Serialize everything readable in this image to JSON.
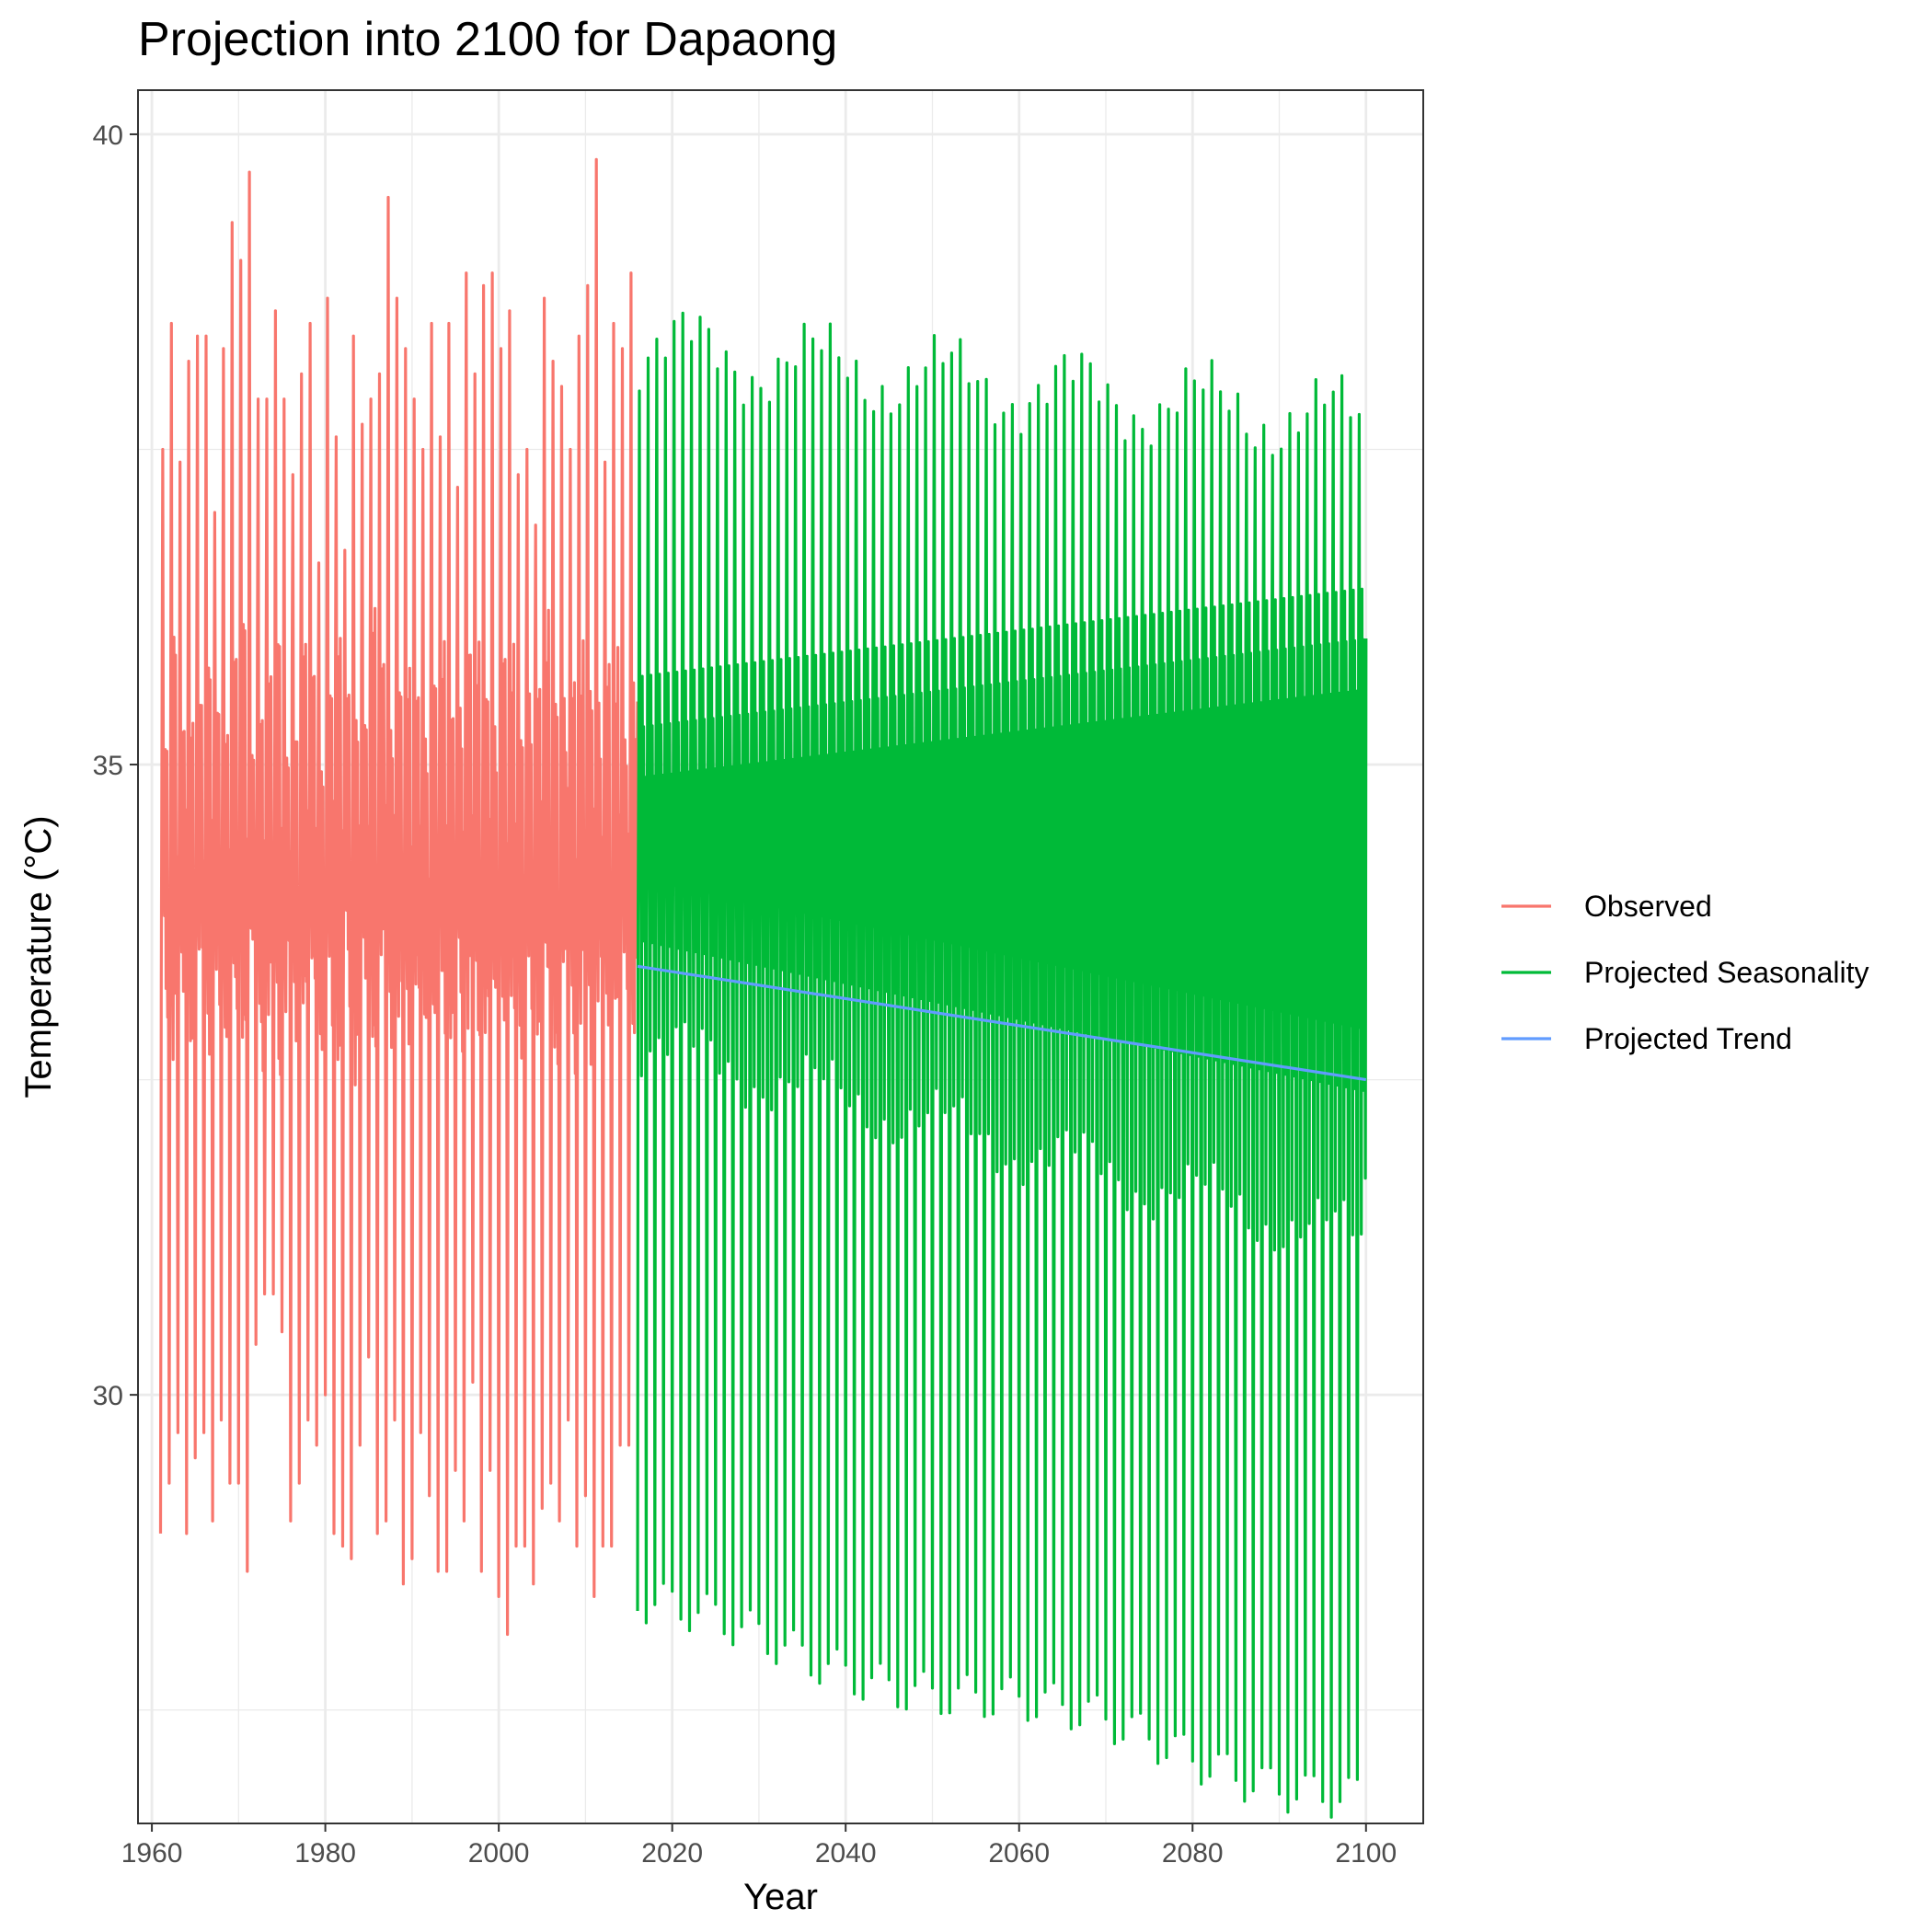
{
  "chart_data": {
    "type": "line",
    "title": "Projection into 2100 for Dapaong",
    "xlabel": "Year",
    "ylabel": "Temperature (°C)",
    "xlim": [
      1958.4,
      2106.6
    ],
    "ylim": [
      26.6,
      40.35
    ],
    "x_ticks": [
      1960,
      1980,
      2000,
      2020,
      2040,
      2060,
      2080,
      2100
    ],
    "y_ticks": [
      30,
      35,
      40
    ],
    "grid": true,
    "legend_position": "right",
    "series": [
      {
        "name": "Observed",
        "color": "#F8766D",
        "x_range": [
          1961,
          2016
        ],
        "peak_years": [
          1961.3,
          1962.3,
          1963.3,
          1964.3,
          1965.3,
          1966.3,
          1967.3,
          1968.3,
          1969.3,
          1970.3,
          1971.3,
          1972.3,
          1973.3,
          1974.3,
          1975.3,
          1976.3,
          1977.3,
          1978.3,
          1979.3,
          1980.3,
          1981.3,
          1982.3,
          1983.3,
          1984.3,
          1985.3,
          1986.3,
          1987.3,
          1988.3,
          1989.3,
          1990.3,
          1991.3,
          1992.3,
          1993.3,
          1994.3,
          1995.3,
          1996.3,
          1997.3,
          1998.3,
          1999.3,
          2000.3,
          2001.3,
          2002.3,
          2003.3,
          2004.3,
          2005.3,
          2006.3,
          2007.3,
          2008.3,
          2009.3,
          2010.3,
          2011.3,
          2012.3,
          2013.3,
          2014.3,
          2015.3
        ],
        "annual_max": [
          37.5,
          38.5,
          37.4,
          38.2,
          38.4,
          38.4,
          37.0,
          38.3,
          39.3,
          39.0,
          39.7,
          37.9,
          37.9,
          38.6,
          37.9,
          37.3,
          38.1,
          38.5,
          36.6,
          38.7,
          37.6,
          36.7,
          38.4,
          37.7,
          37.9,
          38.1,
          39.5,
          38.7,
          38.3,
          37.9,
          37.5,
          38.5,
          37.6,
          38.5,
          37.2,
          38.9,
          38.1,
          38.8,
          38.9,
          38.3,
          38.6,
          37.3,
          37.5,
          36.9,
          38.7,
          38.2,
          38.0,
          37.5,
          38.4,
          38.8,
          39.8,
          37.4,
          38.5,
          38.3,
          38.9
        ],
        "annual_min": [
          28.9,
          29.3,
          29.7,
          28.9,
          29.5,
          29.7,
          29.0,
          29.8,
          29.3,
          29.3,
          28.6,
          30.4,
          30.8,
          30.8,
          30.5,
          29.0,
          29.3,
          29.8,
          29.6,
          30.0,
          28.9,
          28.8,
          28.7,
          29.6,
          30.3,
          28.9,
          29.0,
          29.8,
          28.5,
          28.7,
          29.7,
          29.2,
          28.6,
          28.6,
          29.4,
          29.0,
          30.1,
          28.6,
          29.4,
          28.4,
          28.1,
          28.8,
          28.8,
          28.5,
          29.1,
          29.3,
          29.0,
          29.8,
          28.8,
          29.2,
          28.4,
          28.8,
          28.8,
          29.6,
          29.6
        ],
        "mid_high": [
          35.0,
          35.6,
          35.4,
          35.6,
          35.3,
          35.4,
          35.6,
          35.5,
          35.6,
          35.8,
          35.3,
          35.6,
          35.4,
          35.7,
          35.3,
          35.4,
          35.6,
          35.5,
          35.2,
          35.7,
          35.6,
          35.4,
          35.6,
          35.4,
          35.8,
          35.7,
          35.5,
          35.6,
          35.3,
          35.5,
          35.4,
          35.6,
          35.5,
          35.4,
          35.6,
          35.8,
          35.5,
          35.6,
          35.4,
          35.7,
          35.5,
          35.3,
          35.6,
          35.4,
          35.8,
          35.6,
          35.5,
          35.4,
          35.6,
          35.7,
          35.4,
          35.5,
          35.6,
          35.3,
          35.5
        ],
        "mid_low": [
          33.3,
          33.1,
          33.2,
          33.0,
          33.4,
          33.2,
          33.1,
          33.3,
          33.0,
          33.2,
          33.5,
          33.1,
          33.2,
          33.0,
          33.3,
          33.1,
          33.2,
          33.4,
          33.0,
          33.2,
          33.1,
          33.3,
          33.0,
          33.2,
          33.1,
          33.4,
          33.2,
          33.0,
          33.3,
          33.1,
          33.2,
          33.0,
          33.3,
          33.1,
          33.2,
          33.4,
          33.0,
          33.2,
          33.1,
          33.3,
          33.0,
          33.2,
          33.1,
          33.3,
          33.2,
          33.0,
          33.4,
          33.1,
          33.2,
          33.0,
          33.3,
          33.1,
          33.2,
          33.4,
          33.2
        ]
      },
      {
        "name": "Projected Seasonality",
        "color": "#00BA38",
        "x_range": [
          2016,
          2100
        ],
        "peak_first": 38.3,
        "peak_last": 37.7,
        "trough_first": 28.3,
        "trough_last": 26.8,
        "mid_high_first": 35.3,
        "mid_high_last": 36.0,
        "mid_low_first": 33.8,
        "mid_low_last": 32.6,
        "deep_low_first": 32.8,
        "deep_low_last": 31.2
      },
      {
        "name": "Projected Trend",
        "color": "#619CFF",
        "x": [
          2016,
          2100
        ],
        "y": [
          33.4,
          32.5
        ]
      }
    ]
  }
}
